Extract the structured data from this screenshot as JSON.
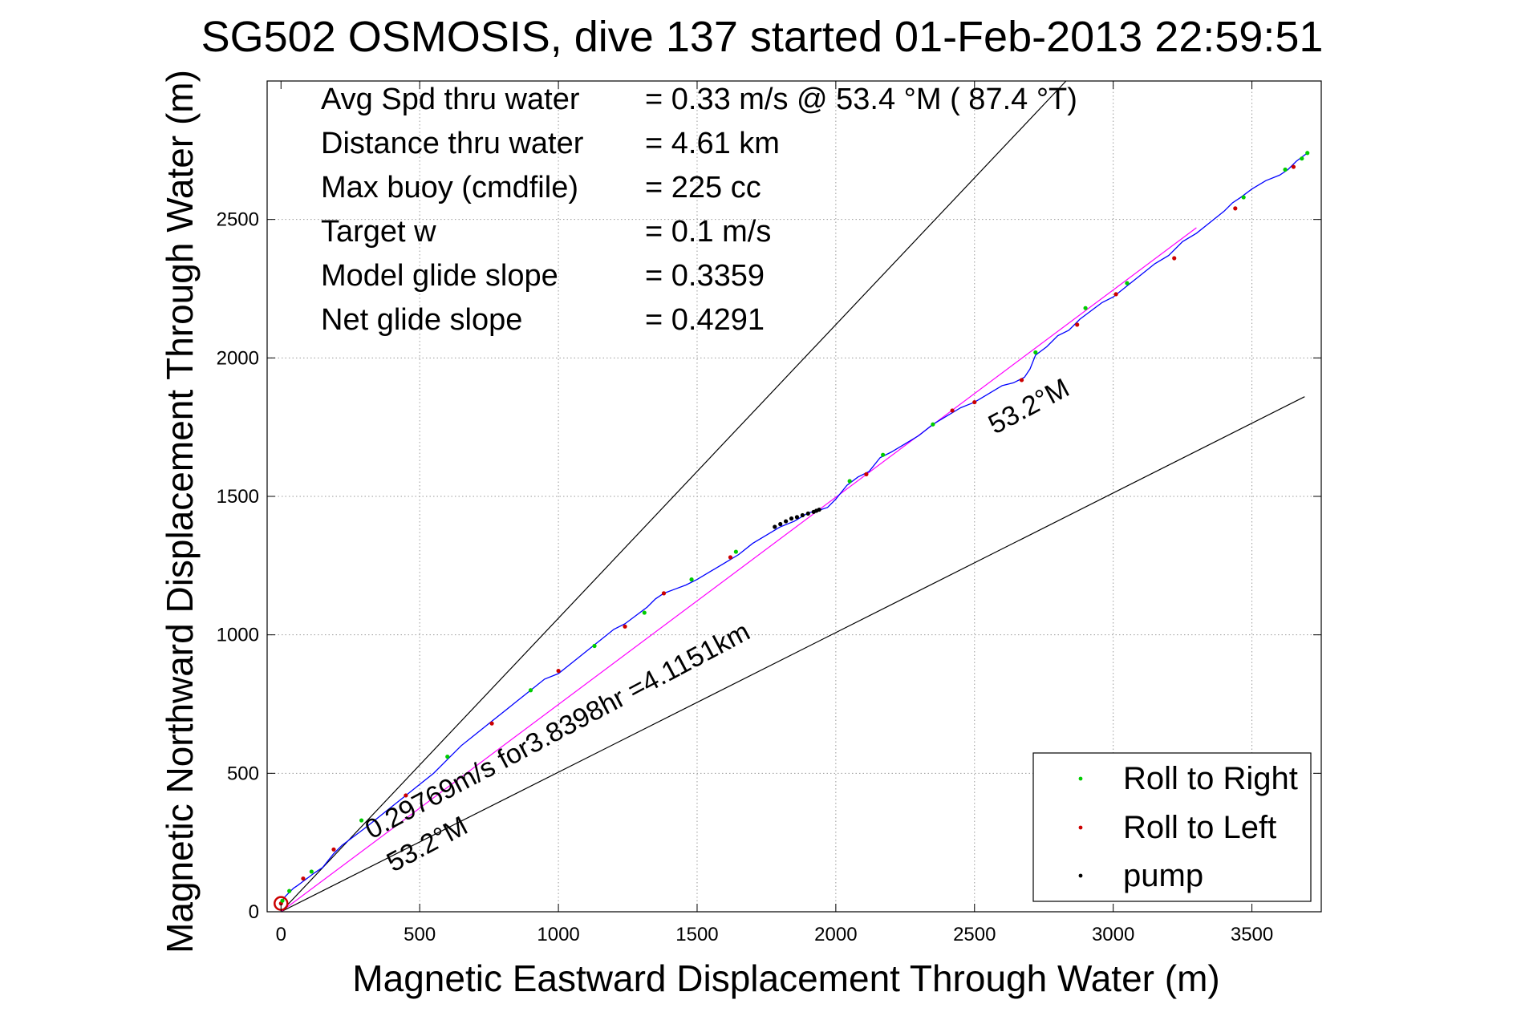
{
  "chart_data": {
    "type": "line",
    "title": "SG502 OSMOSIS, dive 137 started 01-Feb-2013 22:59:51",
    "xlabel": "Magnetic Eastward Displacement Through Water (m)",
    "ylabel": "Magnetic Northward Displacement Through Water (m)",
    "xlim": [
      -50,
      3750
    ],
    "ylim": [
      0,
      3000
    ],
    "xticks": [
      0,
      500,
      1000,
      1500,
      2000,
      2500,
      3000,
      3500
    ],
    "yticks": [
      0,
      500,
      1000,
      1500,
      2000,
      2500
    ],
    "grid": true,
    "legend_position": "bottom-right",
    "stats": [
      {
        "label": "Avg Spd thru water",
        "value": "=  0.33 m/s @  53.4 °M ( 87.4 °T)"
      },
      {
        "label": "Distance thru water",
        "value": "=  4.61 km"
      },
      {
        "label": "Max buoy (cmdfile)",
        "value": "= 225 cc"
      },
      {
        "label": "Target w",
        "value": "= 0.1 m/s"
      },
      {
        "label": "Model glide slope",
        "value": "= 0.3359"
      },
      {
        "label": "Net glide slope",
        "value": "= 0.4291"
      }
    ],
    "annotations": {
      "speed_text": "0.29769m/s for3.8398hr =4.1151km",
      "heading_upper": "53.2°M",
      "heading_lower": "53.2°M"
    },
    "legend": [
      {
        "name": "Roll to Right",
        "color": "#00cc00"
      },
      {
        "name": "Roll to Left",
        "color": "#cc0000"
      },
      {
        "name": "pump",
        "color": "#000000"
      }
    ],
    "colors": {
      "track": "#0000ff",
      "model_line": "#ff00ff",
      "bounds": "#000000"
    },
    "track": {
      "x": [
        0,
        5,
        15,
        30,
        45,
        60,
        80,
        100,
        120,
        150,
        190,
        220,
        260,
        300,
        350,
        400,
        450,
        500,
        550,
        600,
        650,
        700,
        750,
        800,
        850,
        900,
        950,
        1000,
        1050,
        1100,
        1150,
        1200,
        1240,
        1280,
        1320,
        1350,
        1380,
        1420,
        1460,
        1500,
        1550,
        1600,
        1650,
        1700,
        1750,
        1800,
        1850,
        1900,
        1940,
        1970,
        2000,
        2040,
        2080,
        2120,
        2160,
        2200,
        2250,
        2300,
        2350,
        2400,
        2450,
        2500,
        2550,
        2600,
        2640,
        2680,
        2700,
        2720,
        2760,
        2800,
        2840,
        2880,
        2920,
        2960,
        3000,
        3050,
        3100,
        3150,
        3200,
        3250,
        3300,
        3350,
        3400,
        3430,
        3460,
        3500,
        3550,
        3600,
        3630,
        3660,
        3700
      ],
      "y": [
        30,
        40,
        55,
        70,
        85,
        95,
        110,
        125,
        140,
        160,
        210,
        240,
        270,
        300,
        340,
        380,
        420,
        460,
        500,
        550,
        600,
        640,
        680,
        720,
        760,
        800,
        840,
        860,
        900,
        940,
        980,
        1020,
        1040,
        1070,
        1100,
        1130,
        1150,
        1165,
        1180,
        1200,
        1230,
        1260,
        1290,
        1330,
        1360,
        1390,
        1410,
        1440,
        1450,
        1460,
        1490,
        1540,
        1570,
        1590,
        1640,
        1660,
        1690,
        1720,
        1760,
        1790,
        1820,
        1840,
        1870,
        1900,
        1910,
        1930,
        1960,
        2010,
        2040,
        2080,
        2100,
        2140,
        2170,
        2200,
        2220,
        2260,
        2300,
        2340,
        2370,
        2420,
        2450,
        2490,
        2530,
        2560,
        2580,
        2610,
        2640,
        2660,
        2680,
        2710,
        2740
      ]
    },
    "roll_right": {
      "x": [
        5,
        30,
        110,
        290,
        600,
        900,
        1130,
        1310,
        1480,
        1640,
        2050,
        2170,
        2350,
        2720,
        2900,
        3050,
        3470,
        3620,
        3680,
        3700
      ],
      "y": [
        40,
        75,
        145,
        330,
        560,
        800,
        960,
        1080,
        1200,
        1300,
        1555,
        1650,
        1760,
        2020,
        2180,
        2270,
        2580,
        2680,
        2720,
        2740
      ]
    },
    "roll_left": {
      "x": [
        0,
        80,
        190,
        450,
        760,
        1000,
        1240,
        1380,
        1620,
        2110,
        2420,
        2500,
        2670,
        2870,
        3010,
        3220,
        3440,
        3650
      ],
      "y": [
        30,
        120,
        225,
        420,
        680,
        870,
        1030,
        1150,
        1280,
        1580,
        1810,
        1840,
        1920,
        2120,
        2230,
        2360,
        2540,
        2690
      ]
    },
    "pump": {
      "x": [
        1780,
        1800,
        1820,
        1840,
        1860,
        1880,
        1900,
        1920,
        1930,
        1940
      ],
      "y": [
        1390,
        1400,
        1410,
        1420,
        1425,
        1432,
        1438,
        1444,
        1448,
        1452
      ]
    },
    "model_line": {
      "x": [
        0,
        3300
      ],
      "y": [
        0,
        2470
      ]
    },
    "upper_bound": {
      "x": [
        0,
        2830
      ],
      "y": [
        0,
        3000
      ]
    },
    "lower_bound": {
      "x": [
        0,
        3690
      ],
      "y": [
        0,
        1860
      ]
    }
  }
}
